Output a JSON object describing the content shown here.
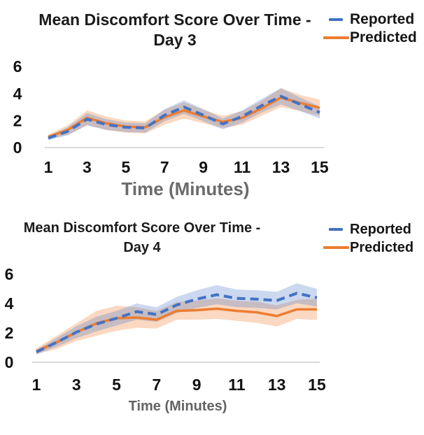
{
  "page": {
    "background": "#ffffff"
  },
  "chart_data": [
    {
      "type": "line",
      "title": "Mean Discomfort Score Over Time - Day 3",
      "title_line1": "Mean Discomfort Score Over Time -",
      "title_line2": "Day 3",
      "xlabel": "Time (Minutes)",
      "x": [
        1,
        2,
        3,
        4,
        5,
        6,
        7,
        8,
        9,
        10,
        11,
        12,
        13,
        14,
        15
      ],
      "x_ticks": [
        1,
        3,
        5,
        7,
        9,
        11,
        13,
        15
      ],
      "y_ticks": [
        0,
        2,
        4,
        6
      ],
      "ylim": [
        0,
        6.5
      ],
      "grid": "zero-baseline-only",
      "legend_position": "top-right",
      "series": [
        {
          "name": "Reported",
          "style": "dashed",
          "color": "#4472C4",
          "band_color": "rgba(68,114,196,0.28)",
          "values": [
            0.7,
            1.2,
            2.1,
            1.7,
            1.5,
            1.45,
            2.4,
            3.0,
            2.4,
            1.75,
            2.3,
            3.1,
            3.8,
            3.2,
            2.6
          ],
          "band_halfwidth": [
            0.15,
            0.3,
            0.45,
            0.4,
            0.35,
            0.35,
            0.45,
            0.5,
            0.45,
            0.4,
            0.45,
            0.5,
            0.6,
            0.5,
            0.45
          ]
        },
        {
          "name": "Predicted",
          "style": "solid",
          "color": "#ED7D31",
          "band_color": "rgba(237,125,49,0.30)",
          "values": [
            0.8,
            1.3,
            2.2,
            1.8,
            1.55,
            1.5,
            2.25,
            2.75,
            2.3,
            1.9,
            2.2,
            2.9,
            3.7,
            3.3,
            2.95
          ],
          "band_halfwidth": [
            0.15,
            0.35,
            0.55,
            0.5,
            0.45,
            0.45,
            0.55,
            0.6,
            0.5,
            0.45,
            0.5,
            0.55,
            0.7,
            0.6,
            0.6
          ]
        }
      ]
    },
    {
      "type": "line",
      "title": "Mean Discomfort Score Over Time - Day 4",
      "title_line1": "Mean Discomfort Score Over Time -",
      "title_line2": "Day 4",
      "xlabel": "Time (Minutes)",
      "x": [
        1,
        2,
        3,
        4,
        5,
        6,
        7,
        8,
        9,
        10,
        11,
        12,
        13,
        14,
        15
      ],
      "x_ticks": [
        1,
        3,
        5,
        7,
        9,
        11,
        13,
        15
      ],
      "y_ticks": [
        0,
        2,
        4,
        6
      ],
      "ylim": [
        0,
        6.5
      ],
      "grid": "zero-baseline-only",
      "legend_position": "top-right",
      "series": [
        {
          "name": "Reported",
          "style": "dashed",
          "color": "#4472C4",
          "band_color": "rgba(68,114,196,0.28)",
          "values": [
            0.7,
            1.35,
            2.05,
            2.6,
            3.0,
            3.45,
            3.25,
            3.9,
            4.3,
            4.6,
            4.35,
            4.3,
            4.2,
            4.7,
            4.4
          ],
          "band_halfwidth": [
            0.15,
            0.3,
            0.4,
            0.5,
            0.5,
            0.55,
            0.5,
            0.55,
            0.6,
            0.65,
            0.6,
            0.6,
            0.6,
            0.68,
            0.6
          ]
        },
        {
          "name": "Predicted",
          "style": "solid",
          "color": "#ED7D31",
          "band_color": "rgba(237,125,49,0.30)",
          "values": [
            0.75,
            1.35,
            2.05,
            2.65,
            3.0,
            3.05,
            2.9,
            3.5,
            3.55,
            3.65,
            3.5,
            3.4,
            3.15,
            3.6,
            3.6
          ],
          "band_halfwidth": [
            0.2,
            0.45,
            0.6,
            0.85,
            0.85,
            0.7,
            0.6,
            0.6,
            0.65,
            0.7,
            0.68,
            0.72,
            0.72,
            0.65,
            0.72
          ]
        }
      ]
    }
  ]
}
